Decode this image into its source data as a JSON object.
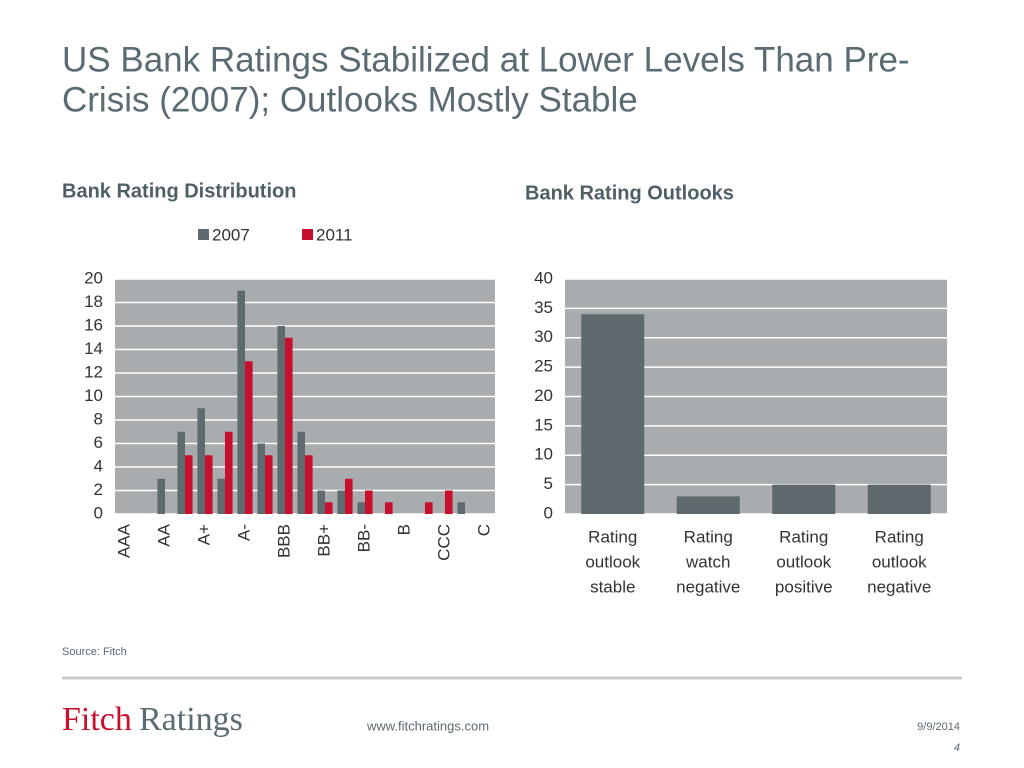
{
  "header": {
    "title_lines": [
      "US Bank Ratings Stabilized at Lower Levels Than Pre-",
      "Crisis (2007); Outlooks Mostly Stable"
    ]
  },
  "chart_data": [
    {
      "type": "bar",
      "title": "Bank Rating Distribution",
      "categories": [
        "AAA",
        null,
        "AA",
        null,
        "A+",
        null,
        "A-",
        null,
        "BBB",
        null,
        "BB+",
        null,
        "BB-",
        null,
        "B",
        null,
        "CCC",
        null,
        "C"
      ],
      "series": [
        {
          "name": "2007",
          "color": "#5f6a6f",
          "values": [
            0,
            0,
            3,
            7,
            9,
            3,
            19,
            6,
            16,
            7,
            2,
            2,
            1,
            0,
            0,
            0,
            0,
            1,
            0
          ]
        },
        {
          "name": "2011",
          "color": "#c8102e",
          "values": [
            0,
            0,
            0,
            5,
            5,
            7,
            13,
            5,
            15,
            5,
            1,
            3,
            2,
            1,
            0,
            1,
            2,
            0,
            0
          ]
        }
      ],
      "ylim": [
        0,
        20
      ],
      "yticks": [
        0,
        2,
        4,
        6,
        8,
        10,
        12,
        14,
        16,
        18,
        20
      ],
      "grid": true,
      "legend": "top"
    },
    {
      "type": "bar",
      "title": "Bank Rating Outlooks",
      "categories": [
        [
          "Rating",
          "outlook",
          "stable"
        ],
        [
          "Rating",
          "watch",
          "negative"
        ],
        [
          "Rating",
          "outlook",
          "positive"
        ],
        [
          "Rating",
          "outlook",
          "negative"
        ]
      ],
      "values": [
        34,
        3,
        5,
        5
      ],
      "color": "#5f6a6f",
      "ylim": [
        0,
        40
      ],
      "yticks": [
        0,
        5,
        10,
        15,
        20,
        25,
        30,
        35,
        40
      ],
      "grid": true
    }
  ],
  "source": "Source: Fitch",
  "footer": {
    "logo_first": "Fitch",
    "logo_second": "Ratings",
    "url": "www.fitchratings.com",
    "date": "9/9/2014",
    "page": "4"
  }
}
